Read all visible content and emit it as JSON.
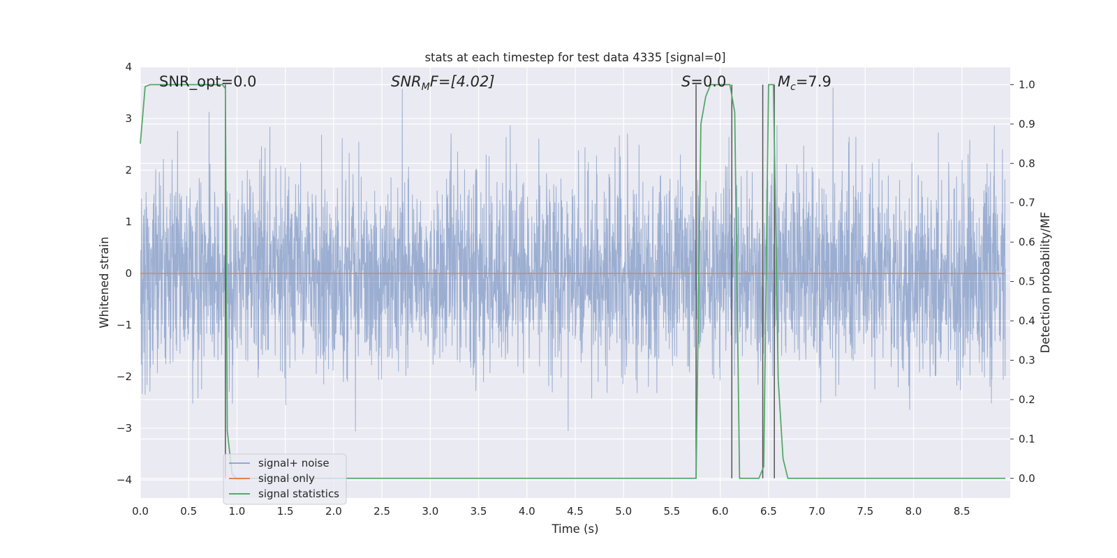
{
  "chart_data": {
    "type": "line",
    "title": "stats at each timestep for test data 4335 [signal=0]",
    "xlabel": "Time (s)",
    "ylabel_left": "Whitened strain",
    "ylabel_right": "Detection probability/MF",
    "xlim": [
      0.0,
      9.0
    ],
    "ylim_left": [
      -4.35,
      4.0
    ],
    "ylim_right": [
      -0.05,
      1.045
    ],
    "x_ticks": [
      "0.0",
      "0.5",
      "1.0",
      "1.5",
      "2.0",
      "2.5",
      "3.0",
      "3.5",
      "4.0",
      "4.5",
      "5.0",
      "5.5",
      "6.0",
      "6.5",
      "7.0",
      "7.5",
      "8.0",
      "8.5"
    ],
    "y_ticks_left": [
      "4",
      "3",
      "2",
      "1",
      "0",
      "−1",
      "−2",
      "−3",
      "−4"
    ],
    "y_ticks_right": [
      "1.0",
      "0.9",
      "0.8",
      "0.7",
      "0.6",
      "0.5",
      "0.4",
      "0.3",
      "0.2",
      "0.1",
      "0.0"
    ],
    "annotations": {
      "snr_opt": "SNR_opt=0.0",
      "snr_mf_prefix": "SNR",
      "snr_mf_sub": "M",
      "snr_mf_suffix": "F=[4.02]",
      "s_italic": "S",
      "s_value": "=0.0",
      "mc_italic": "M",
      "mc_sub": "c",
      "mc_value": "=7.9"
    },
    "grid": true,
    "legend_placement": "lower-left",
    "series": [
      {
        "name": "signal+ noise",
        "color": "#4c72b0",
        "axis": "left",
        "description_stats": {
          "amplitude_bulk": 1.8,
          "peak_max": 3.6,
          "peak_min": -3.8,
          "x_range": [
            0.0,
            8.95
          ]
        }
      },
      {
        "name": "signal only",
        "color": "#dd8452",
        "axis": "left",
        "x": [
          0.0,
          8.95
        ],
        "y": [
          0.0,
          0.0
        ]
      },
      {
        "name": "signal statistics",
        "color": "#55a868",
        "axis": "right",
        "x": [
          0.0,
          0.05,
          0.1,
          0.15,
          0.2,
          0.8,
          0.85,
          0.88,
          0.9,
          0.95,
          1.0,
          5.7,
          5.75,
          5.8,
          5.85,
          5.9,
          6.1,
          6.15,
          6.2,
          6.25,
          6.4,
          6.45,
          6.5,
          6.55,
          6.6,
          6.65,
          6.7,
          8.9,
          8.95
        ],
        "y": [
          0.85,
          0.995,
          1.0,
          1.0,
          1.0,
          1.0,
          1.0,
          0.99,
          0.12,
          0.01,
          0.0,
          0.0,
          0.0,
          0.9,
          0.97,
          1.0,
          1.0,
          0.93,
          0.0,
          0.0,
          0.0,
          0.03,
          1.0,
          1.0,
          0.25,
          0.05,
          0.0,
          0.0,
          0.0
        ]
      }
    ],
    "vertical_markers": [
      {
        "color": "#555555",
        "x": 0.88,
        "y_from_right": 0.0,
        "y_to_right": 1.0
      },
      {
        "color": "#555555",
        "x": 5.75,
        "y_from_right": 0.0,
        "y_to_right": 1.0
      },
      {
        "color": "#555555",
        "x": 6.12,
        "y_from_right": 0.0,
        "y_to_right": 1.0
      },
      {
        "color": "#555555",
        "x": 6.44,
        "y_from_right": 0.0,
        "y_to_right": 1.0
      },
      {
        "color": "#555555",
        "x": 6.56,
        "y_from_right": 0.0,
        "y_to_right": 1.0
      }
    ]
  }
}
